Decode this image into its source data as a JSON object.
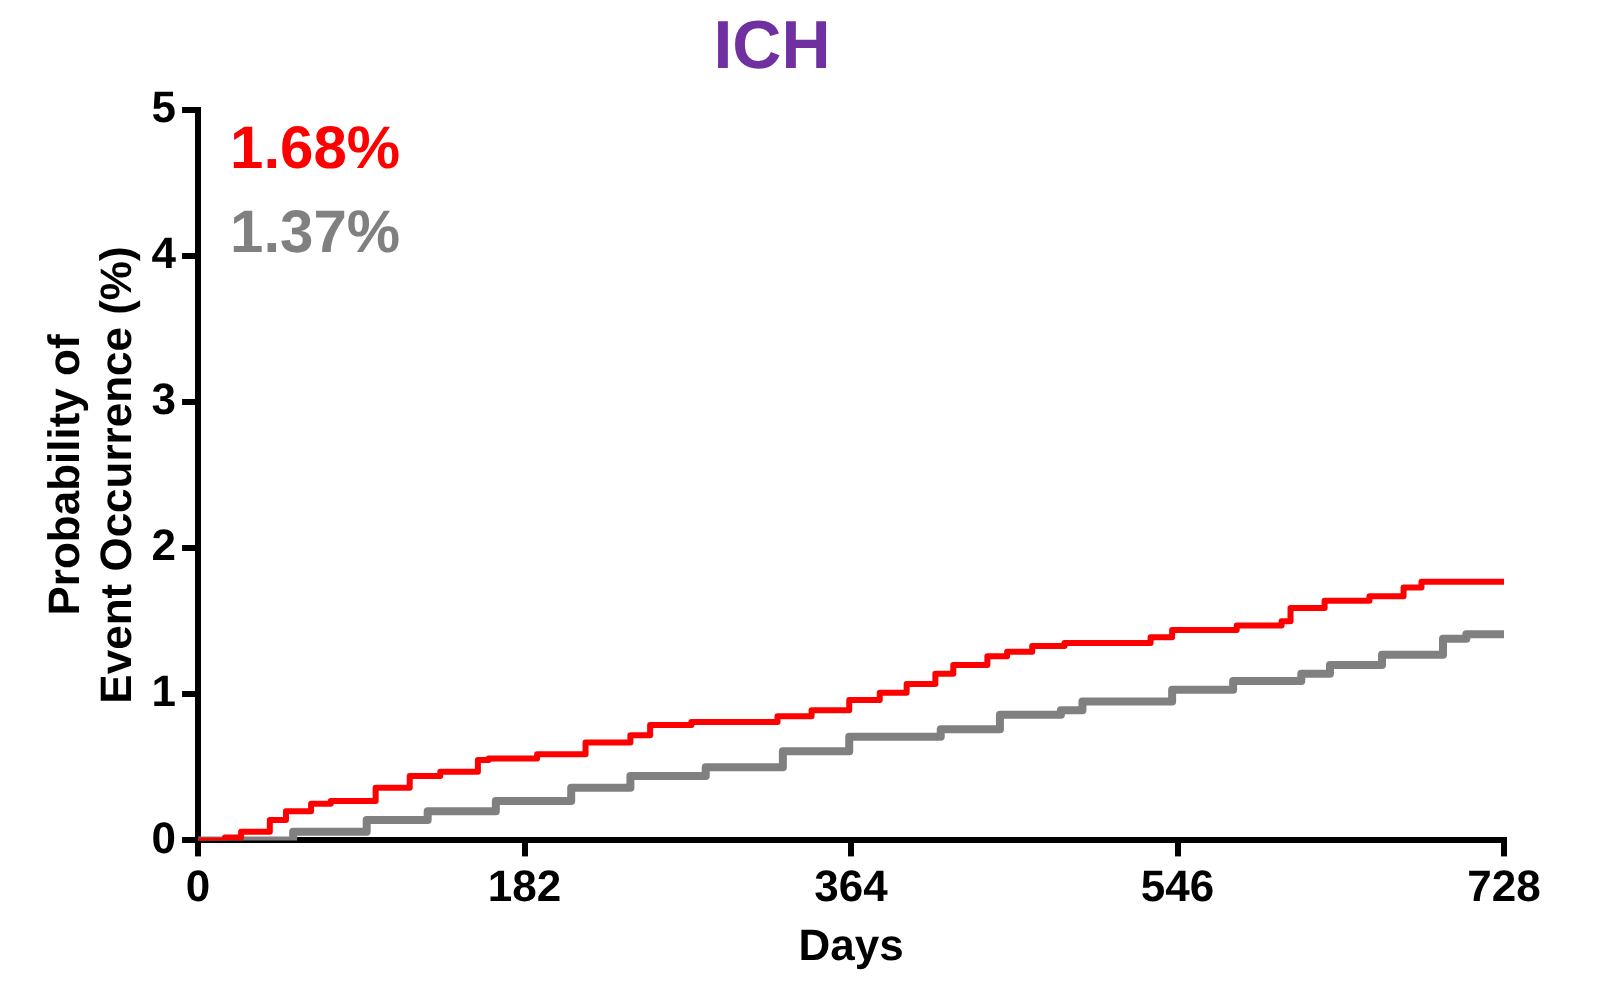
{
  "chart_data": {
    "type": "step",
    "title": "ICH",
    "xlabel": "Days",
    "ylabel": "Probability of\nEvent Occurrence (%)",
    "annotations": [
      "1.68%",
      "1.37%"
    ],
    "xlim": [
      0,
      728
    ],
    "xticks": [
      0,
      182,
      364,
      546,
      728
    ],
    "ylim": [
      0,
      5
    ],
    "yticks": [
      0,
      1,
      2,
      3,
      4,
      5
    ],
    "grid": false,
    "legend": false,
    "marker": "none",
    "line_style": "solid",
    "series": [
      {
        "color": "#ff0000",
        "x": [
          0,
          15,
          24,
          40,
          49,
          63,
          74,
          99,
          118,
          135,
          156,
          162,
          189,
          216,
          241,
          252,
          275,
          323,
          342,
          363,
          380,
          395,
          411,
          421,
          440,
          451,
          465,
          483,
          531,
          543,
          579,
          604,
          609,
          628,
          653,
          672,
          682,
          728
        ],
        "values": [
          0,
          0.02,
          0.06,
          0.14,
          0.2,
          0.25,
          0.27,
          0.36,
          0.44,
          0.47,
          0.55,
          0.56,
          0.59,
          0.67,
          0.72,
          0.79,
          0.81,
          0.85,
          0.89,
          0.96,
          1.01,
          1.07,
          1.14,
          1.2,
          1.26,
          1.29,
          1.33,
          1.35,
          1.39,
          1.44,
          1.47,
          1.5,
          1.59,
          1.64,
          1.67,
          1.73,
          1.77,
          1.77
        ]
      },
      {
        "color": "#808080",
        "x": [
          0,
          28,
          53,
          94,
          128,
          166,
          208,
          241,
          283,
          326,
          363,
          414,
          447,
          481,
          493,
          543,
          577,
          615,
          631,
          660,
          694,
          707,
          728
        ],
        "values": [
          0,
          0,
          0.06,
          0.14,
          0.2,
          0.27,
          0.36,
          0.44,
          0.5,
          0.61,
          0.71,
          0.76,
          0.86,
          0.89,
          0.95,
          1.03,
          1.09,
          1.14,
          1.2,
          1.27,
          1.38,
          1.41,
          1.41
        ]
      }
    ]
  }
}
